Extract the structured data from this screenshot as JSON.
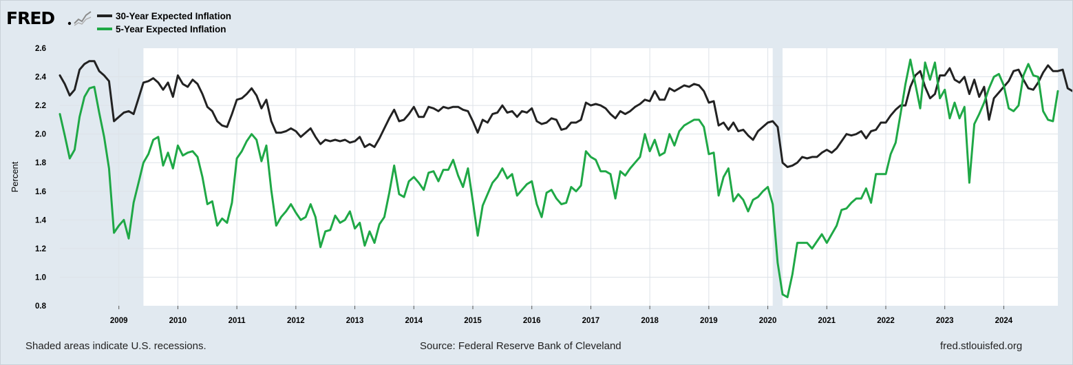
{
  "brand": {
    "logo_text": "FRED"
  },
  "footer": {
    "recession_note": "Shaded areas indicate U.S. recessions.",
    "source": "Source: Federal Reserve Bank of Cleveland",
    "url": "fred.stlouisfed.org"
  },
  "colors": {
    "background": "#e1e9f0",
    "plot": "#ffffff",
    "recession": "#e1e9f0",
    "grid": "#dde2e8"
  },
  "chart_data": {
    "type": "line",
    "ylabel": "Percent",
    "xlabel": "",
    "ylim": [
      0.8,
      2.6
    ],
    "yticks": [
      "0.8",
      "1.0",
      "1.2",
      "1.4",
      "1.6",
      "1.8",
      "2.0",
      "2.2",
      "2.4",
      "2.6"
    ],
    "xlim": [
      "2008-01",
      "2024-12"
    ],
    "xticks": [
      "2009",
      "2010",
      "2011",
      "2012",
      "2013",
      "2014",
      "2015",
      "2016",
      "2017",
      "2018",
      "2019",
      "2020",
      "2021",
      "2022",
      "2023",
      "2024"
    ],
    "grid": true,
    "legend_position": "top-left",
    "recessions": [
      [
        "2008-01",
        "2009-06"
      ],
      [
        "2020-02",
        "2020-04"
      ]
    ],
    "frequency": "monthly",
    "start": "2008-01",
    "series": [
      {
        "name": "30-Year Expected Inflation",
        "color": "#222222",
        "values": [
          2.41,
          2.35,
          2.27,
          2.31,
          2.45,
          2.49,
          2.51,
          2.51,
          2.44,
          2.41,
          2.37,
          2.09,
          2.12,
          2.15,
          2.16,
          2.14,
          2.25,
          2.36,
          2.37,
          2.39,
          2.36,
          2.31,
          2.36,
          2.26,
          2.41,
          2.35,
          2.33,
          2.38,
          2.35,
          2.28,
          2.19,
          2.16,
          2.09,
          2.06,
          2.05,
          2.14,
          2.24,
          2.25,
          2.28,
          2.32,
          2.27,
          2.18,
          2.24,
          2.09,
          2.01,
          2.01,
          2.02,
          2.04,
          2.02,
          1.98,
          2.01,
          2.04,
          1.98,
          1.93,
          1.96,
          1.95,
          1.96,
          1.95,
          1.96,
          1.94,
          1.95,
          1.98,
          1.91,
          1.93,
          1.91,
          1.97,
          2.04,
          2.11,
          2.17,
          2.09,
          2.1,
          2.14,
          2.19,
          2.12,
          2.12,
          2.19,
          2.18,
          2.16,
          2.19,
          2.18,
          2.19,
          2.19,
          2.17,
          2.16,
          2.09,
          2.01,
          2.1,
          2.08,
          2.14,
          2.15,
          2.2,
          2.15,
          2.16,
          2.12,
          2.16,
          2.15,
          2.18,
          2.09,
          2.07,
          2.08,
          2.11,
          2.1,
          2.03,
          2.04,
          2.08,
          2.08,
          2.1,
          2.22,
          2.2,
          2.21,
          2.2,
          2.18,
          2.14,
          2.11,
          2.16,
          2.14,
          2.16,
          2.19,
          2.21,
          2.24,
          2.23,
          2.3,
          2.24,
          2.24,
          2.32,
          2.3,
          2.32,
          2.34,
          2.33,
          2.35,
          2.34,
          2.3,
          2.22,
          2.23,
          2.06,
          2.08,
          2.03,
          2.08,
          2.02,
          2.03,
          1.99,
          1.96,
          2.02,
          2.05,
          2.08,
          2.09,
          2.05,
          1.8,
          1.77,
          1.78,
          1.8,
          1.84,
          1.83,
          1.84,
          1.84,
          1.87,
          1.89,
          1.87,
          1.9,
          1.95,
          2.0,
          1.99,
          2.0,
          2.02,
          1.97,
          2.02,
          2.03,
          2.08,
          2.08,
          2.13,
          2.17,
          2.2,
          2.2,
          2.33,
          2.41,
          2.44,
          2.33,
          2.25,
          2.28,
          2.41,
          2.41,
          2.46,
          2.38,
          2.36,
          2.4,
          2.28,
          2.38,
          2.26,
          2.33,
          2.1,
          2.25,
          2.29,
          2.33,
          2.37,
          2.44,
          2.45,
          2.38,
          2.32,
          2.31,
          2.36,
          2.43,
          2.48,
          2.44,
          2.44,
          2.45,
          2.32,
          2.3,
          2.3,
          2.42
        ]
      },
      {
        "name": "5-Year Expected Inflation",
        "color": "#1fa846",
        "values": [
          2.14,
          1.99,
          1.83,
          1.89,
          2.12,
          2.26,
          2.32,
          2.33,
          2.15,
          1.98,
          1.76,
          1.31,
          1.36,
          1.4,
          1.27,
          1.52,
          1.66,
          1.8,
          1.86,
          1.96,
          1.98,
          1.78,
          1.87,
          1.76,
          1.92,
          1.85,
          1.87,
          1.88,
          1.84,
          1.7,
          1.51,
          1.53,
          1.36,
          1.41,
          1.38,
          1.52,
          1.83,
          1.88,
          1.95,
          2.0,
          1.96,
          1.81,
          1.92,
          1.61,
          1.36,
          1.42,
          1.46,
          1.51,
          1.45,
          1.4,
          1.42,
          1.51,
          1.42,
          1.21,
          1.32,
          1.33,
          1.43,
          1.38,
          1.4,
          1.46,
          1.34,
          1.38,
          1.22,
          1.32,
          1.24,
          1.37,
          1.42,
          1.59,
          1.78,
          1.58,
          1.56,
          1.67,
          1.7,
          1.66,
          1.61,
          1.73,
          1.74,
          1.67,
          1.75,
          1.75,
          1.82,
          1.71,
          1.63,
          1.76,
          1.53,
          1.29,
          1.5,
          1.58,
          1.66,
          1.7,
          1.76,
          1.69,
          1.72,
          1.57,
          1.61,
          1.65,
          1.67,
          1.51,
          1.42,
          1.59,
          1.61,
          1.55,
          1.51,
          1.52,
          1.63,
          1.6,
          1.64,
          1.88,
          1.84,
          1.82,
          1.74,
          1.74,
          1.72,
          1.55,
          1.74,
          1.71,
          1.76,
          1.8,
          1.84,
          2.0,
          1.88,
          1.96,
          1.85,
          1.87,
          2.0,
          1.92,
          2.02,
          2.06,
          2.08,
          2.1,
          2.1,
          2.05,
          1.86,
          1.87,
          1.57,
          1.7,
          1.76,
          1.53,
          1.58,
          1.54,
          1.46,
          1.54,
          1.56,
          1.6,
          1.63,
          1.51,
          1.1,
          0.88,
          0.86,
          1.02,
          1.24,
          1.24,
          1.24,
          1.2,
          1.25,
          1.3,
          1.24,
          1.3,
          1.36,
          1.47,
          1.48,
          1.52,
          1.55,
          1.55,
          1.62,
          1.52,
          1.72,
          1.72,
          1.72,
          1.86,
          1.94,
          2.14,
          2.35,
          2.52,
          2.35,
          2.18,
          2.5,
          2.38,
          2.5,
          2.25,
          2.31,
          2.11,
          2.22,
          2.11,
          2.19,
          1.66,
          2.07,
          2.14,
          2.22,
          2.32,
          2.4,
          2.42,
          2.34,
          2.18,
          2.16,
          2.2,
          2.41,
          2.49,
          2.41,
          2.4,
          2.16,
          2.1,
          2.09,
          2.3
        ]
      }
    ]
  }
}
